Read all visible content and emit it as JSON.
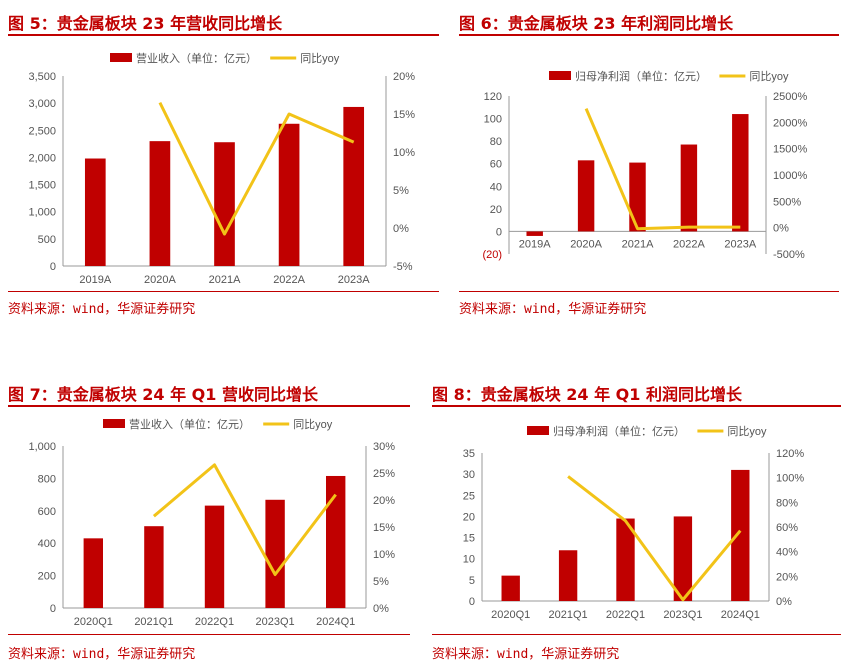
{
  "colors": {
    "bar": "#c00000",
    "line": "#f2c318",
    "accent": "#c00000",
    "axis": "#555555"
  },
  "figures": [
    {
      "title": "图 5：贵金属板块 23 年营收同比增长",
      "source": "资料来源：wind，华源证券研究"
    },
    {
      "title": "图 6：贵金属板块 23 年利润同比增长",
      "source": "资料来源：wind，华源证券研究"
    },
    {
      "title": "图 7：贵金属板块 24 年 Q1 营收同比增长",
      "source": "资料来源：wind，华源证券研究"
    },
    {
      "title": "图 8：贵金属板块 24 年 Q1 利润同比增长",
      "source": "资料来源：wind，华源证券研究"
    }
  ],
  "chart_data": [
    {
      "type": "bar",
      "categories": [
        "2019A",
        "2020A",
        "2021A",
        "2022A",
        "2023A"
      ],
      "series": [
        {
          "name": "营业收入（单位：亿元）",
          "type": "bar",
          "axis": "left",
          "values": [
            1980,
            2300,
            2280,
            2620,
            2930
          ]
        },
        {
          "name": "同比yoy",
          "type": "line",
          "axis": "right",
          "values": [
            null,
            16.5,
            -0.8,
            15.0,
            11.3
          ]
        }
      ],
      "ylim": [
        0,
        3500
      ],
      "y2lim": [
        -5,
        20
      ],
      "yticks": [
        "0",
        "500",
        "1,000",
        "1,500",
        "2,000",
        "2,500",
        "3,000",
        "3,500"
      ],
      "y2ticks": [
        "-5%",
        "0%",
        "5%",
        "10%",
        "15%",
        "20%"
      ],
      "legend": "top-center"
    },
    {
      "type": "bar",
      "categories": [
        "2019A",
        "2020A",
        "2021A",
        "2022A",
        "2023A"
      ],
      "series": [
        {
          "name": "归母净利润（单位：亿元）",
          "type": "bar",
          "axis": "left",
          "values": [
            -4,
            63,
            61,
            77,
            104
          ]
        },
        {
          "name": "同比yoy",
          "type": "line",
          "axis": "right",
          "values": [
            null,
            2260,
            -20,
            10,
            10
          ]
        }
      ],
      "ylim": [
        -20,
        120
      ],
      "y2lim": [
        -500,
        2500
      ],
      "yticks": [
        "(20)",
        "0",
        "20",
        "40",
        "60",
        "80",
        "100",
        "120"
      ],
      "y2ticks": [
        "-500%",
        "0%",
        "500%",
        "1000%",
        "1500%",
        "2000%",
        "2500%"
      ],
      "legend": "top-center"
    },
    {
      "type": "bar",
      "categories": [
        "2020Q1",
        "2021Q1",
        "2022Q1",
        "2023Q1",
        "2024Q1"
      ],
      "series": [
        {
          "name": "营业收入（单位：亿元）",
          "type": "bar",
          "axis": "left",
          "values": [
            430,
            505,
            632,
            668,
            815
          ]
        },
        {
          "name": "同比yoy",
          "type": "line",
          "axis": "right",
          "values": [
            null,
            17,
            26.5,
            6.2,
            21
          ]
        }
      ],
      "ylim": [
        0,
        1000
      ],
      "y2lim": [
        0,
        30
      ],
      "yticks": [
        "0",
        "200",
        "400",
        "600",
        "800",
        "1,000"
      ],
      "y2ticks": [
        "0%",
        "5%",
        "10%",
        "15%",
        "20%",
        "25%",
        "30%"
      ],
      "legend": "top-center"
    },
    {
      "type": "bar",
      "categories": [
        "2020Q1",
        "2021Q1",
        "2022Q1",
        "2023Q1",
        "2024Q1"
      ],
      "series": [
        {
          "name": "归母净利润（单位：亿元）",
          "type": "bar",
          "axis": "left",
          "values": [
            6,
            12,
            19.5,
            20,
            31
          ]
        },
        {
          "name": "同比yoy",
          "type": "line",
          "axis": "right",
          "values": [
            null,
            101,
            65,
            1,
            57
          ]
        }
      ],
      "ylim": [
        0,
        35
      ],
      "y2lim": [
        0,
        120
      ],
      "yticks": [
        "0",
        "5",
        "10",
        "15",
        "20",
        "25",
        "30",
        "35"
      ],
      "y2ticks": [
        "0%",
        "20%",
        "40%",
        "60%",
        "80%",
        "100%",
        "120%"
      ],
      "legend": "top-center"
    }
  ]
}
